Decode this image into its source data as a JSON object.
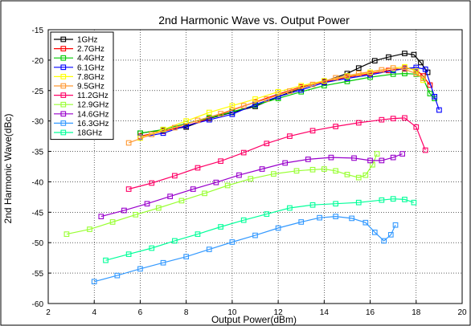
{
  "chart_data": {
    "type": "line",
    "title": "2nd Harmonic Wave vs. Output Power",
    "xlabel": "Output Power(dBm)",
    "ylabel": "2nd Harmonic Wave(dBc)",
    "xlim": [
      2,
      20
    ],
    "ylim": [
      -60,
      -15
    ],
    "xticks": [
      "2",
      "4",
      "6",
      "8",
      "10",
      "12",
      "14",
      "16",
      "18",
      "20"
    ],
    "yticks": [
      "-15",
      "-20",
      "-25",
      "-30",
      "-35",
      "-40",
      "-45",
      "-50",
      "-55",
      "-60"
    ],
    "grid": true,
    "legend_position": "top-left",
    "series": [
      {
        "name": "1GHz",
        "color": "#000000",
        "x": [
          6.0,
          7.0,
          8.0,
          9.0,
          10.0,
          11.0,
          12.0,
          13.0,
          14.0,
          15.0,
          15.5,
          16.2,
          16.8,
          17.5,
          17.9,
          18.2,
          18.5
        ],
        "y": [
          -32,
          -31.5,
          -31,
          -29.6,
          -28.6,
          -27.6,
          -26,
          -24.6,
          -23.5,
          -22.2,
          -21.3,
          -20.1,
          -19.5,
          -18.9,
          -19.1,
          -20.4,
          -22
        ]
      },
      {
        "name": "2.7GHz",
        "color": "#ff0000",
        "x": [
          6.0,
          7.0,
          8.0,
          9.0,
          10.0,
          11.0,
          12.0,
          13.0,
          14.0,
          15.0,
          16.0,
          16.8,
          17.5,
          18.0,
          18.3,
          18.6
        ],
        "y": [
          -32.5,
          -31.7,
          -30.8,
          -29.6,
          -28.2,
          -26.9,
          -25.6,
          -24.4,
          -23.6,
          -22.8,
          -22.2,
          -21.7,
          -21.3,
          -21.6,
          -22.6,
          -24.1
        ]
      },
      {
        "name": "4.4GHz",
        "color": "#00cc00",
        "x": [
          6.0,
          7.0,
          8.0,
          9.0,
          10.0,
          11.0,
          12.0,
          13.0,
          14.0,
          15.0,
          16.0,
          17.0,
          17.5,
          18.0,
          18.3,
          18.6,
          18.8
        ],
        "y": [
          -32,
          -31.4,
          -30.4,
          -29.5,
          -28.5,
          -27.4,
          -26.3,
          -25.2,
          -24.2,
          -23.5,
          -22.8,
          -22.3,
          -22.2,
          -22.3,
          -23,
          -25.5,
          -26.3
        ]
      },
      {
        "name": "6.1GHz",
        "color": "#0000ff",
        "x": [
          6.0,
          7.0,
          8.0,
          9.0,
          10.0,
          11.0,
          12.0,
          13.0,
          14.0,
          15.0,
          16.0,
          17.0,
          17.5,
          18.0,
          18.4,
          18.8,
          19.0
        ],
        "y": [
          -32.7,
          -32,
          -30.8,
          -29.8,
          -28.9,
          -27.3,
          -26,
          -24.9,
          -23.7,
          -23,
          -22.4,
          -21.7,
          -21.4,
          -21.2,
          -21.5,
          -26,
          -28.2
        ]
      },
      {
        "name": "7.8GHz",
        "color": "#ffff00",
        "x": [
          6.0,
          7.0,
          8.0,
          9.0,
          10.0,
          11.0,
          12.0,
          13.0,
          14.0,
          15.0,
          16.0,
          17.0,
          17.5,
          18.0,
          18.3
        ],
        "y": [
          -32.8,
          -31.4,
          -30,
          -28.6,
          -27.5,
          -26.4,
          -25.2,
          -24.2,
          -23.4,
          -22.6,
          -22,
          -21.3,
          -21.1,
          -21.8,
          -23.3
        ]
      },
      {
        "name": "9.5GHz",
        "color": "#ff9933",
        "x": [
          5.5,
          6.5,
          7.5,
          8.5,
          9.5,
          10.5,
          11.5,
          12.5,
          13.5,
          14.5,
          15.5,
          16.5,
          17.0,
          17.5,
          18.0,
          18.3
        ],
        "y": [
          -33.6,
          -32.2,
          -31.1,
          -29.9,
          -28.8,
          -27.5,
          -26.4,
          -25.1,
          -24,
          -22.9,
          -22.2,
          -21.6,
          -21.3,
          -21.5,
          -22.2,
          -23
        ]
      },
      {
        "name": "11.2GHz",
        "color": "#ff0066",
        "x": [
          5.5,
          6.5,
          7.5,
          8.5,
          9.5,
          10.5,
          11.5,
          12.5,
          13.5,
          14.5,
          15.5,
          16.5,
          17.0,
          17.5,
          18.0,
          18.4
        ],
        "y": [
          -41.2,
          -40.2,
          -39,
          -37.7,
          -36.6,
          -35.2,
          -33.7,
          -32.5,
          -31.6,
          -30.9,
          -30.3,
          -29.8,
          -29.6,
          -29.5,
          -31,
          -34.8
        ]
      },
      {
        "name": "12.9GHz",
        "color": "#99ff33",
        "x": [
          2.8,
          3.8,
          4.8,
          5.8,
          6.8,
          7.8,
          8.8,
          9.8,
          10.8,
          11.8,
          12.8,
          13.5,
          14.0,
          14.5,
          15.0,
          15.5,
          15.8,
          16.1,
          16.3
        ],
        "y": [
          -48.6,
          -47.8,
          -46.6,
          -45.4,
          -44.3,
          -43.1,
          -41.9,
          -40.6,
          -39.5,
          -38.7,
          -38.2,
          -38,
          -37.9,
          -38.2,
          -38.8,
          -39.3,
          -38.9,
          -37.2,
          -35.4
        ]
      },
      {
        "name": "14.6GHz",
        "color": "#9900cc",
        "x": [
          4.3,
          5.3,
          6.3,
          7.3,
          8.3,
          9.3,
          10.3,
          11.3,
          12.3,
          13.3,
          14.3,
          15.3,
          16.0,
          16.5,
          17.0,
          17.4
        ],
        "y": [
          -45.7,
          -44.7,
          -43.6,
          -42.4,
          -41.2,
          -40.1,
          -38.9,
          -37.9,
          -36.9,
          -36.3,
          -36,
          -36.1,
          -36.5,
          -36.5,
          -36,
          -35.4
        ]
      },
      {
        "name": "16.3GHz",
        "color": "#3399ff",
        "x": [
          4.0,
          5.0,
          6.0,
          7.0,
          8.0,
          9.0,
          10.0,
          11.0,
          12.0,
          13.0,
          13.8,
          14.5,
          15.2,
          15.8,
          16.2,
          16.6,
          16.9,
          17.1
        ],
        "y": [
          -56.4,
          -55.4,
          -54.3,
          -53.3,
          -52.3,
          -51.1,
          -49.9,
          -48.8,
          -47.6,
          -46.6,
          -45.9,
          -45.7,
          -46,
          -46.7,
          -48.3,
          -49.7,
          -48.7,
          -47.1
        ]
      },
      {
        "name": "18GHz",
        "color": "#00ff99",
        "x": [
          4.5,
          5.5,
          6.5,
          7.5,
          8.5,
          9.5,
          10.5,
          11.5,
          12.5,
          13.5,
          14.5,
          15.5,
          16.5,
          17.0,
          17.5,
          17.9
        ],
        "y": [
          -52.9,
          -51.9,
          -50.9,
          -49.7,
          -48.6,
          -47.4,
          -46.3,
          -45.3,
          -44.3,
          -43.8,
          -43.6,
          -43.4,
          -43,
          -42.8,
          -42.9,
          -43.4
        ]
      }
    ]
  }
}
